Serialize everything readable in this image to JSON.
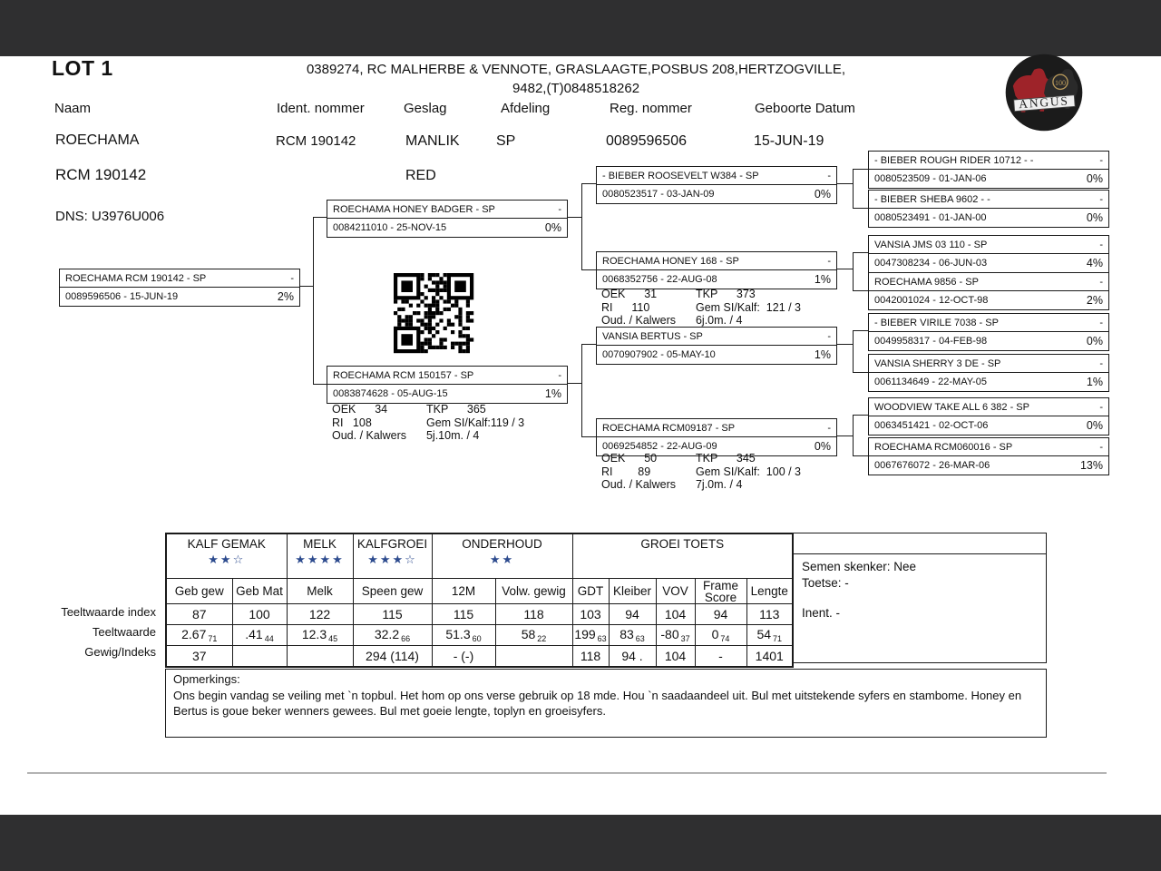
{
  "page": {
    "lot": "LOT 1",
    "seller_line1": "0389274,  RC MALHERBE & VENNOTE, GRASLAAGTE,POSBUS 208,HERTZOGVILLE,",
    "seller_line2": "9482,(T)0848518262"
  },
  "fields": {
    "naam_label": "Naam",
    "naam": "ROECHAMA",
    "ident_label": "Ident. nommer",
    "ident": "RCM 190142",
    "geslag_label": "Geslag",
    "geslag": "MANLIK",
    "afdeling_label": "Afdeling",
    "afdeling": "SP",
    "reg_label": "Reg. nommer",
    "reg": "0089596506",
    "geboorte_label": "Geboorte Datum",
    "geboorte": "15-JUN-19",
    "name_line2": "RCM 190142",
    "colour": "RED",
    "dns": "DNS: U3976U006"
  },
  "logo": {
    "text": "ANGUS",
    "badge": "100"
  },
  "pedigree": {
    "boxes": [
      {
        "id": "subject",
        "title": "ROECHAMA RCM 190142 - SP",
        "dash": "-",
        "reg": "0089596506 -  15-JUN-19",
        "pct": "2%"
      },
      {
        "id": "sire",
        "title": "ROECHAMA HONEY BADGER - SP",
        "dash": "-",
        "reg": "0084211010 - 25-NOV-15",
        "pct": "0%"
      },
      {
        "id": "dam",
        "title": "ROECHAMA RCM 150157 - SP",
        "dash": "-",
        "reg": "0083874628 - 05-AUG-15",
        "pct": "1%"
      },
      {
        "id": "ss",
        "title": "- BIEBER ROOSEVELT W384 - SP",
        "dash": "-",
        "reg": "0080523517 - 03-JAN-09",
        "pct": "0%"
      },
      {
        "id": "sd",
        "title": "ROECHAMA HONEY 168 - SP",
        "dash": "-",
        "reg": "0068352756 - 22-AUG-08",
        "pct": "1%"
      },
      {
        "id": "ds",
        "title": "VANSIA BERTUS - SP",
        "dash": "-",
        "reg": "0070907902 - 05-MAY-10",
        "pct": "1%"
      },
      {
        "id": "dd",
        "title": "ROECHAMA RCM09187 - SP",
        "dash": "-",
        "reg": "0069254852 - 22-AUG-09",
        "pct": "0%"
      },
      {
        "id": "sss",
        "title": "- BIEBER ROUGH RIDER 10712 - -",
        "dash": "-",
        "reg": "0080523509 - 01-JAN-06",
        "pct": "0%"
      },
      {
        "id": "ssd",
        "title": "- BIEBER SHEBA 9602 - -",
        "dash": "-",
        "reg": "0080523491 - 01-JAN-00",
        "pct": "0%"
      },
      {
        "id": "sds",
        "title": "VANSIA JMS 03 110 - SP",
        "dash": "-",
        "reg": "0047308234 - 06-JUN-03",
        "pct": "4%"
      },
      {
        "id": "sdd",
        "title": "ROECHAMA 9856 - SP",
        "dash": "-",
        "reg": "0042001024 - 12-OCT-98",
        "pct": "2%"
      },
      {
        "id": "dss",
        "title": "- BIEBER VIRILE 7038 - SP",
        "dash": "-",
        "reg": "0049958317 - 04-FEB-98",
        "pct": "0%"
      },
      {
        "id": "dsd",
        "title": "VANSIA SHERRY 3 DE - SP",
        "dash": "-",
        "reg": "0061134649 - 22-MAY-05",
        "pct": "1%"
      },
      {
        "id": "dds",
        "title": "WOODVIEW TAKE ALL 6 382 - SP",
        "dash": "-",
        "reg": "0063451421 - 02-OCT-06",
        "pct": "0%"
      },
      {
        "id": "ddd",
        "title": "ROECHAMA RCM060016 - SP",
        "dash": "-",
        "reg": "0067676072 - 26-MAR-06",
        "pct": "13%"
      }
    ],
    "stats": [
      {
        "id": "dam",
        "left": "OEK      34\nRI   108\nOud. / Kalwers",
        "right": "TKP      365\nGem SI/Kalf:119 / 3\n5j.10m. / 4"
      },
      {
        "id": "sd",
        "left": "OEK      31\nRI      110\nOud. / Kalwers",
        "right": "TKP      373\nGem SI/Kalf:  121 / 3\n6j.0m. / 4"
      },
      {
        "id": "dd",
        "left": "OEK      50\nRI        89\nOud. / Kalwers",
        "right": "TKP      345\nGem SI/Kalf:  100 / 3\n7j.0m. / 4"
      }
    ]
  },
  "chart_data": {
    "type": "table",
    "title": "Teeltwaardes",
    "row_labels": [
      "Teeltwaarde index",
      "Teeltwaarde",
      "Gewig/Indeks"
    ],
    "groups": [
      {
        "label": "KALF GEMAK",
        "span": 2,
        "stars_filled": 2,
        "stars_outline": 1
      },
      {
        "label": "MELK",
        "span": 1,
        "stars_filled": 4,
        "stars_outline": 0
      },
      {
        "label": "KALFGROEI",
        "span": 1,
        "stars_filled": 3,
        "stars_outline": 1
      },
      {
        "label": "ONDERHOUD",
        "span": 2,
        "stars_filled": 2,
        "stars_outline": 0
      },
      {
        "label": "GROEI TOETS",
        "span": 5,
        "stars_filled": 0,
        "stars_outline": 0
      }
    ],
    "columns": [
      "Geb gew",
      "Geb Mat",
      "Melk",
      "Speen gew",
      "12M",
      "Volw. gewig",
      "GDT",
      "Kleiber",
      "VOV",
      "Frame Score",
      "Lengte"
    ],
    "index_row": [
      "87",
      "100",
      "122",
      "115",
      "115",
      "118",
      "103",
      "94",
      "104",
      "94",
      "113"
    ],
    "value_row": [
      {
        "v": "2.67",
        "a": "71"
      },
      {
        "v": ".41",
        "a": "44"
      },
      {
        "v": "12.3",
        "a": "45"
      },
      {
        "v": "32.2",
        "a": "66"
      },
      {
        "v": "51.3",
        "a": "60"
      },
      {
        "v": "58",
        "a": "22"
      },
      {
        "v": "199",
        "a": "63"
      },
      {
        "v": "83",
        "a": "63"
      },
      {
        "v": "-80",
        "a": "37"
      },
      {
        "v": "0",
        "a": "74"
      },
      {
        "v": "54",
        "a": "71"
      }
    ],
    "weight_row": [
      "37",
      "",
      "",
      "294 (114)",
      "-  (-)",
      "",
      "118",
      "94 .",
      "104",
      "-",
      "1401"
    ]
  },
  "side_panel": {
    "semen": "Semen skenker: Nee",
    "toetse": "Toetse: -",
    "inent": "Inent. -"
  },
  "remarks": {
    "title": "Opmerkings:",
    "text": "Ons begin vandag se veiling met `n topbul. Het hom op ons verse gebruik op 18 mde. Hou `n saadaandeel uit. Bul met uitstekende syfers en stambome. Honey en Bertus is goue beker wenners gewees. Bul met goeie lengte, toplyn en groeisyfers."
  },
  "colors": {
    "star": "#2d4b8e",
    "bar": "#2f2f30",
    "logo_red": "#9e2329",
    "logo_black": "#1b1b1b",
    "logo_gold": "#b5975a"
  }
}
